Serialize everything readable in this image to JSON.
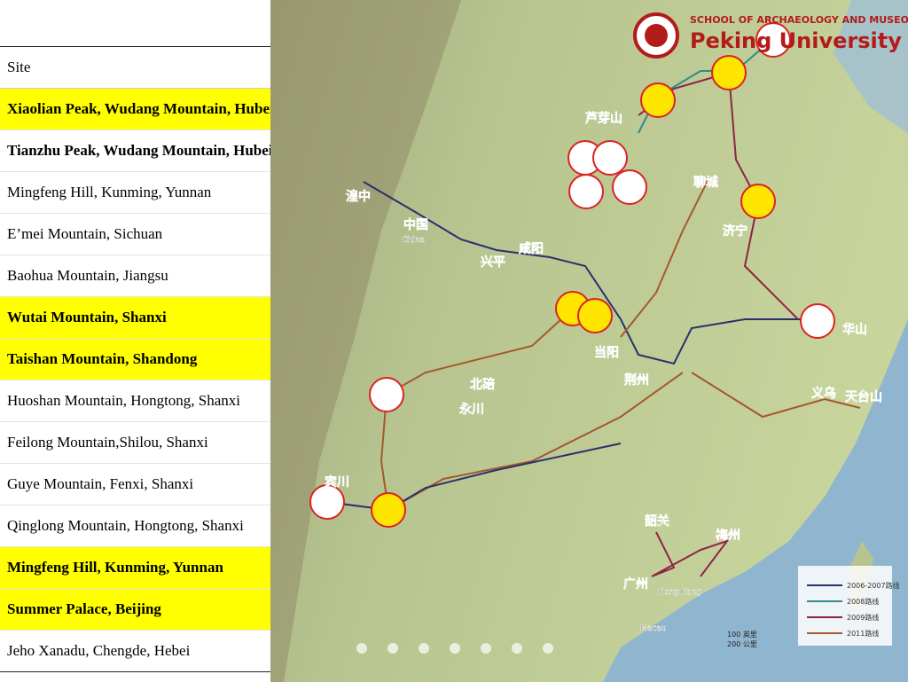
{
  "table": {
    "header": "Site",
    "rows": [
      {
        "site": "Xiaolian Peak, Wudang Mountain, Hubei",
        "bold": true,
        "highlight": true
      },
      {
        "site": "Tianzhu Peak, Wudang Mountain, Hubei",
        "bold": true,
        "highlight": false
      },
      {
        "site": "Mingfeng Hill, Kunming, Yunnan",
        "bold": false,
        "highlight": false
      },
      {
        "site": "E’mei Mountain, Sichuan",
        "bold": false,
        "highlight": false
      },
      {
        "site": "Baohua Mountain, Jiangsu",
        "bold": false,
        "highlight": false
      },
      {
        "site": "Wutai Mountain, Shanxi",
        "bold": true,
        "highlight": true
      },
      {
        "site": "Taishan Mountain, Shandong",
        "bold": true,
        "highlight": true
      },
      {
        "site": "Huoshan Mountain, Hongtong, Shanxi",
        "bold": false,
        "highlight": false
      },
      {
        "site": "Feilong Mountain,Shilou, Shanxi",
        "bold": false,
        "highlight": false
      },
      {
        "site": "Guye Mountain, Fenxi, Shanxi",
        "bold": false,
        "highlight": false
      },
      {
        "site": "Qinglong Mountain, Hongtong, Shanxi",
        "bold": false,
        "highlight": false
      },
      {
        "site": "Mingfeng Hill, Kunming, Yunnan",
        "bold": true,
        "highlight": true
      },
      {
        "site": "Summer Palace, Beijing",
        "bold": true,
        "highlight": true
      },
      {
        "site": "Jeho Xanadu, Chengde, Hebei",
        "bold": false,
        "highlight": false
      }
    ]
  },
  "map": {
    "school": "SCHOOL OF ARCHAEOLOGY AND MUSEOLOGY",
    "university": "Peking University",
    "labels": [
      "芦芽山",
      "聊城",
      "济宁",
      "湟中",
      "中国",
      "China",
      "咸阳",
      "兴平",
      "北碚",
      "永川",
      "当阳",
      "荆州",
      "义乌",
      "天台山",
      "韶关",
      "梅州",
      "广州",
      "Hong Kong",
      "Macau",
      "宾川",
      "华山"
    ],
    "legend": [
      {
        "name": "2006-2007路线",
        "color": "#2b2f6e"
      },
      {
        "name": "2008路线",
        "color": "#2f8c8c"
      },
      {
        "name": "2009路线",
        "color": "#8e2446"
      },
      {
        "name": "2011路线",
        "color": "#a5582e"
      }
    ],
    "scale": [
      "100 英里",
      "200 公里"
    ]
  }
}
